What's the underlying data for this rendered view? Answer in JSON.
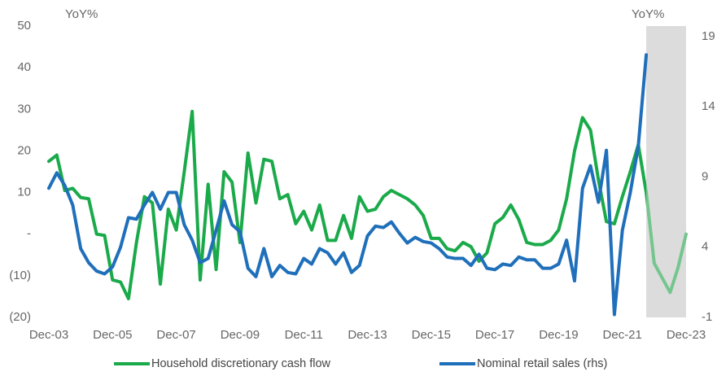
{
  "chart_data": {
    "type": "line",
    "y_label": "YoY%",
    "y2_label": "YoY%",
    "x": [
      2004,
      2004.25,
      2004.5,
      2004.75,
      2005,
      2005.25,
      2005.5,
      2005.75,
      2006,
      2006.25,
      2006.5,
      2006.75,
      2007,
      2007.25,
      2007.5,
      2007.75,
      2008,
      2008.25,
      2008.5,
      2008.75,
      2009,
      2009.25,
      2009.5,
      2009.75,
      2010,
      2010.25,
      2010.5,
      2010.75,
      2011,
      2011.25,
      2011.5,
      2011.75,
      2012,
      2012.25,
      2012.5,
      2012.75,
      2013,
      2013.25,
      2013.5,
      2013.75,
      2014,
      2014.25,
      2014.5,
      2014.75,
      2015,
      2015.25,
      2015.5,
      2015.75,
      2016,
      2016.25,
      2016.5,
      2016.75,
      2017,
      2017.25,
      2017.5,
      2017.75,
      2018,
      2018.25,
      2018.5,
      2018.75,
      2019,
      2019.25,
      2019.5,
      2019.75,
      2020,
      2020.25,
      2020.5,
      2020.75,
      2021,
      2021.25,
      2021.5,
      2021.75,
      2022,
      2022.25,
      2022.5,
      2022.75,
      2023,
      2023.25,
      2023.5,
      2023.75,
      2024
    ],
    "series": [
      {
        "name": "Household discretionary cash flow",
        "color": "#1aaa4a",
        "shaded_color": "#74c58e",
        "axis": "y",
        "values": [
          17.5,
          19,
          10.5,
          11,
          8.8,
          8.5,
          0,
          -0.3,
          -11,
          -11.5,
          -15.5,
          -2,
          9,
          7.5,
          -12,
          6,
          1,
          15,
          29.5,
          -11,
          12,
          -8.5,
          15,
          12.5,
          -2,
          19.5,
          7.5,
          18,
          17.5,
          8.5,
          9.5,
          2.5,
          5.5,
          1,
          7,
          -1.5,
          -1.5,
          4.5,
          -1,
          9,
          5.5,
          6,
          9,
          10.5,
          9.5,
          8.5,
          7,
          4.5,
          -1,
          -1,
          -3.5,
          -4,
          -2,
          -3,
          -6.5,
          -4.5,
          2.5,
          4,
          7,
          3.5,
          -2,
          -2.5,
          -2.5,
          -1.5,
          1,
          8.5,
          20,
          28,
          25,
          13,
          3,
          2.5,
          9,
          15,
          21.5,
          10,
          -7,
          -10.5,
          -14,
          -8,
          0
        ]
      },
      {
        "name": "Nominal retail sales (rhs)",
        "color": "#1f6fba",
        "axis": "y2",
        "values": [
          8.2,
          9.3,
          8.4,
          7.0,
          3.9,
          2.9,
          2.3,
          2.1,
          2.6,
          4.0,
          6.1,
          6.0,
          7.0,
          7.9,
          6.7,
          7.9,
          7.9,
          5.6,
          4.5,
          2.9,
          3.2,
          5.2,
          7.3,
          5.6,
          5.1,
          2.5,
          1.9,
          3.9,
          1.9,
          2.7,
          2.2,
          2.1,
          3.2,
          2.8,
          3.9,
          3.6,
          2.8,
          3.6,
          2.2,
          2.7,
          4.8,
          5.5,
          5.4,
          5.8,
          5.0,
          4.3,
          4.7,
          4.4,
          4.3,
          3.9,
          3.3,
          3.2,
          3.2,
          2.7,
          3.5,
          2.5,
          2.4,
          2.8,
          2.7,
          3.3,
          3.1,
          3.1,
          2.5,
          2.5,
          2.8,
          4.5,
          1.6,
          8.2,
          9.8,
          7.2,
          10.9,
          -0.8,
          5.2,
          7.9,
          11.2,
          17.7,
          null,
          null,
          null,
          null,
          null
        ]
      }
    ],
    "xlim": [
      2004,
      2024
    ],
    "xticks": [
      {
        "value": 2004,
        "label": "Dec-03"
      },
      {
        "value": 2006,
        "label": "Dec-05"
      },
      {
        "value": 2008,
        "label": "Dec-07"
      },
      {
        "value": 2010,
        "label": "Dec-09"
      },
      {
        "value": 2012,
        "label": "Dec-11"
      },
      {
        "value": 2014,
        "label": "Dec-13"
      },
      {
        "value": 2016,
        "label": "Dec-15"
      },
      {
        "value": 2018,
        "label": "Dec-17"
      },
      {
        "value": 2020,
        "label": "Dec-19"
      },
      {
        "value": 2022,
        "label": "Dec-21"
      },
      {
        "value": 2024,
        "label": "Dec-23"
      }
    ],
    "ylim": [
      -20,
      50
    ],
    "yticks": [
      50,
      40,
      30,
      20,
      10,
      {
        "value": 0,
        "label": "-"
      },
      {
        "value": -10,
        "label": "(10)"
      },
      {
        "value": -20,
        "label": "(20)"
      }
    ],
    "y2lim": [
      -1,
      19.75
    ],
    "y2ticks": [
      19,
      14,
      9,
      4,
      -1
    ],
    "shaded_region": [
      2022.75,
      2024
    ],
    "shade_color": "#dcdcdc",
    "grid": false,
    "legend": "bottom"
  }
}
